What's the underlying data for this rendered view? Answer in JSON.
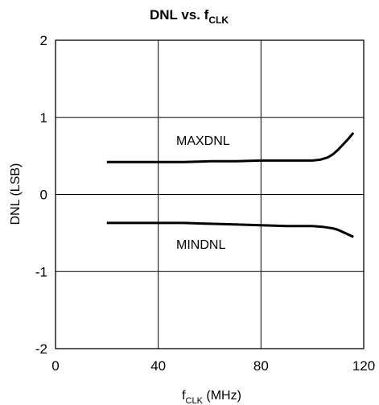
{
  "chart_data": {
    "type": "line",
    "title": {
      "main": "DNL vs. f",
      "sub": "CLK"
    },
    "xlabel": {
      "main": "f",
      "sub": "CLK",
      "suffix": " (MHz)"
    },
    "ylabel": "DNL (LSB)",
    "xlim": [
      0,
      120
    ],
    "ylim": [
      -2,
      2
    ],
    "xticks": [
      0,
      40,
      80,
      120
    ],
    "yticks": [
      -2,
      -1,
      0,
      1,
      2
    ],
    "grid": true,
    "series": [
      {
        "name": "MAXDNL",
        "x": [
          20,
          30,
          40,
          50,
          60,
          70,
          80,
          90,
          95,
          100,
          103,
          106,
          108,
          110,
          112,
          114,
          116
        ],
        "y": [
          0.42,
          0.42,
          0.42,
          0.42,
          0.43,
          0.43,
          0.44,
          0.44,
          0.44,
          0.44,
          0.45,
          0.48,
          0.52,
          0.58,
          0.65,
          0.72,
          0.8
        ]
      },
      {
        "name": "MINDNL",
        "x": [
          20,
          30,
          40,
          50,
          60,
          70,
          80,
          90,
          95,
          100,
          104,
          108,
          110,
          112,
          114,
          116
        ],
        "y": [
          -0.37,
          -0.37,
          -0.37,
          -0.37,
          -0.38,
          -0.39,
          -0.4,
          -0.41,
          -0.41,
          -0.41,
          -0.42,
          -0.44,
          -0.46,
          -0.49,
          -0.52,
          -0.55
        ]
      }
    ]
  }
}
